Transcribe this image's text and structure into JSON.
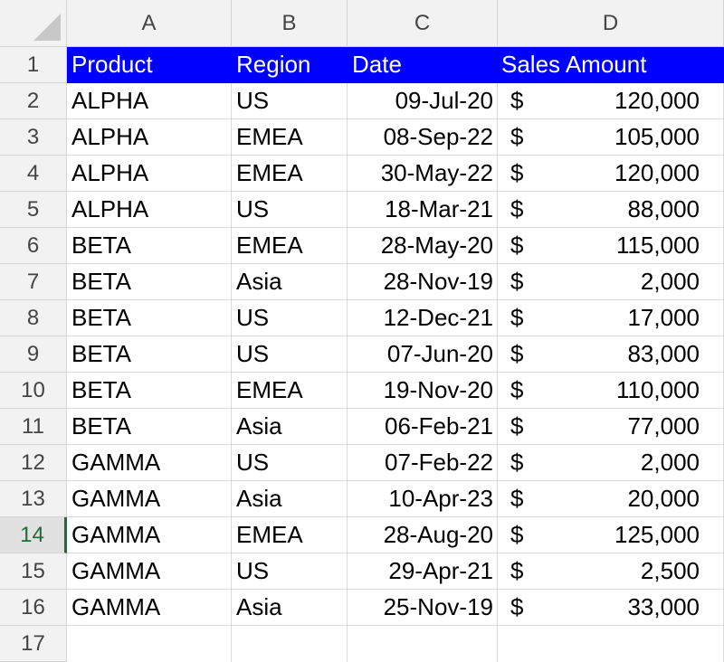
{
  "columns": [
    "A",
    "B",
    "C",
    "D"
  ],
  "header": {
    "product": "Product",
    "region": "Region",
    "date": "Date",
    "sales": "Sales Amount"
  },
  "active_row": "14",
  "currency": "$",
  "rows": [
    {
      "num": "2",
      "product": "ALPHA",
      "region": "US",
      "date": "09-Jul-20",
      "amount": "120,000"
    },
    {
      "num": "3",
      "product": "ALPHA",
      "region": "EMEA",
      "date": "08-Sep-22",
      "amount": "105,000"
    },
    {
      "num": "4",
      "product": "ALPHA",
      "region": "EMEA",
      "date": "30-May-22",
      "amount": "120,000"
    },
    {
      "num": "5",
      "product": "ALPHA",
      "region": "US",
      "date": "18-Mar-21",
      "amount": "88,000"
    },
    {
      "num": "6",
      "product": "BETA",
      "region": "EMEA",
      "date": "28-May-20",
      "amount": "115,000"
    },
    {
      "num": "7",
      "product": "BETA",
      "region": "Asia",
      "date": "28-Nov-19",
      "amount": "2,000"
    },
    {
      "num": "8",
      "product": "BETA",
      "region": "US",
      "date": "12-Dec-21",
      "amount": "17,000"
    },
    {
      "num": "9",
      "product": "BETA",
      "region": "US",
      "date": "07-Jun-20",
      "amount": "83,000"
    },
    {
      "num": "10",
      "product": "BETA",
      "region": "EMEA",
      "date": "19-Nov-20",
      "amount": "110,000"
    },
    {
      "num": "11",
      "product": "BETA",
      "region": "Asia",
      "date": "06-Feb-21",
      "amount": "77,000"
    },
    {
      "num": "12",
      "product": "GAMMA",
      "region": "US",
      "date": "07-Feb-22",
      "amount": "2,000"
    },
    {
      "num": "13",
      "product": "GAMMA",
      "region": "Asia",
      "date": "10-Apr-23",
      "amount": "20,000"
    },
    {
      "num": "14",
      "product": "GAMMA",
      "region": "EMEA",
      "date": "28-Aug-20",
      "amount": "125,000"
    },
    {
      "num": "15",
      "product": "GAMMA",
      "region": "US",
      "date": "29-Apr-21",
      "amount": "2,500"
    },
    {
      "num": "16",
      "product": "GAMMA",
      "region": "Asia",
      "date": "25-Nov-19",
      "amount": "33,000"
    }
  ],
  "row_numbers": [
    "1",
    "2",
    "3",
    "4",
    "5",
    "6",
    "7",
    "8",
    "9",
    "10",
    "11",
    "12",
    "13",
    "14",
    "15",
    "16",
    "17"
  ]
}
